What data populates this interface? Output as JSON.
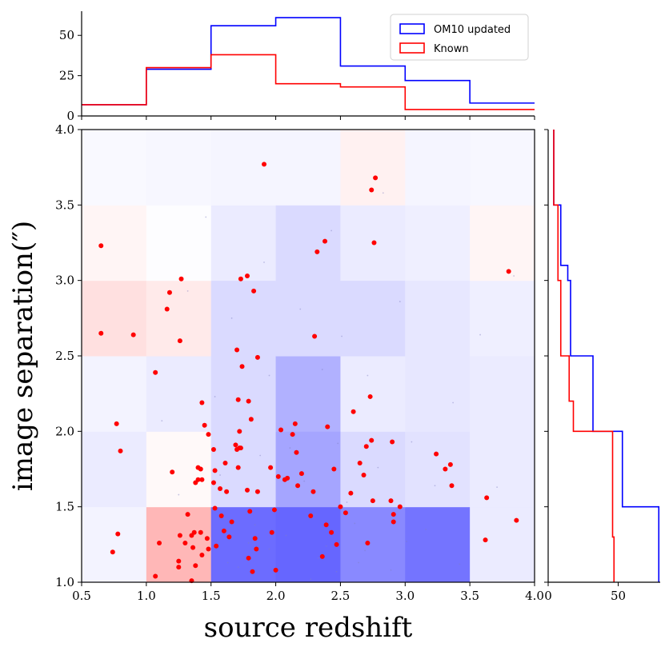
{
  "chart_data": [
    {
      "id": "joint",
      "type": "heatmap",
      "xlabel": "source redshift",
      "ylabel": "image separation(″)",
      "xlim": [
        0.5,
        4.0
      ],
      "ylim": [
        1.0,
        4.0
      ],
      "x_edges": [
        0.5,
        1.0,
        1.5,
        2.0,
        2.5,
        3.0,
        3.5,
        4.0
      ],
      "y_edges": [
        1.0,
        1.5,
        2.0,
        2.5,
        3.0,
        3.5,
        4.0
      ],
      "x_ticks": [
        0.5,
        1.0,
        1.5,
        2.0,
        2.5,
        3.0,
        3.5,
        4.0
      ],
      "x_tick_labels": [
        "0.5",
        "1.0",
        "1.5",
        "2.0",
        "2.5",
        "3.0",
        "3.5",
        "4.0"
      ],
      "y_ticks": [
        1.0,
        1.5,
        2.0,
        2.5,
        3.0,
        3.5,
        4.0
      ],
      "y_tick_labels": [
        "1.0",
        "1.5",
        "2.0",
        "2.5",
        "3.0",
        "3.5",
        "4.0"
      ],
      "difference_colors": {
        "positive": "#3333ff",
        "negative": "#ff3030",
        "neutral": "#ffffff"
      },
      "difference_grid": [
        [
          0.06,
          -0.35,
          0.72,
          0.75,
          0.58,
          0.68,
          0.1
        ],
        [
          0.1,
          -0.03,
          0.18,
          0.44,
          0.18,
          0.14,
          0.1
        ],
        [
          0.06,
          0.1,
          0.18,
          0.38,
          0.1,
          0.12,
          0.1
        ],
        [
          -0.15,
          -0.1,
          0.18,
          0.18,
          0.18,
          0.12,
          0.08
        ],
        [
          -0.05,
          0.01,
          0.1,
          0.18,
          0.1,
          0.08,
          -0.05
        ],
        [
          0.03,
          0.04,
          0.05,
          0.05,
          -0.07,
          0.05,
          0.04
        ]
      ],
      "known_color": "#ff0000",
      "known_points": [
        [
          0.65,
          3.23
        ],
        [
          0.65,
          2.65
        ],
        [
          0.9,
          2.64
        ],
        [
          0.77,
          2.05
        ],
        [
          0.8,
          1.87
        ],
        [
          0.78,
          1.32
        ],
        [
          0.74,
          1.2
        ],
        [
          1.07,
          2.39
        ],
        [
          1.18,
          2.92
        ],
        [
          1.16,
          2.81
        ],
        [
          1.27,
          3.01
        ],
        [
          1.26,
          2.6
        ],
        [
          1.2,
          1.73
        ],
        [
          1.1,
          1.26
        ],
        [
          1.07,
          1.04
        ],
        [
          1.26,
          1.31
        ],
        [
          1.25,
          1.14
        ],
        [
          1.3,
          1.26
        ],
        [
          1.32,
          1.45
        ],
        [
          1.25,
          1.1
        ],
        [
          1.35,
          1.31
        ],
        [
          1.37,
          1.33
        ],
        [
          1.36,
          1.23
        ],
        [
          1.38,
          1.11
        ],
        [
          1.35,
          1.01
        ],
        [
          1.42,
          1.33
        ],
        [
          1.43,
          1.18
        ],
        [
          1.4,
          1.68
        ],
        [
          1.38,
          1.66
        ],
        [
          1.43,
          1.68
        ],
        [
          1.4,
          1.76
        ],
        [
          1.42,
          1.75
        ],
        [
          1.45,
          2.04
        ],
        [
          1.43,
          2.19
        ],
        [
          1.47,
          1.29
        ],
        [
          1.48,
          1.22
        ],
        [
          1.48,
          1.98
        ],
        [
          1.52,
          1.88
        ],
        [
          1.52,
          1.66
        ],
        [
          1.53,
          1.74
        ],
        [
          1.53,
          1.49
        ],
        [
          1.54,
          1.24
        ],
        [
          1.57,
          1.62
        ],
        [
          1.58,
          1.44
        ],
        [
          1.6,
          1.34
        ],
        [
          1.61,
          1.79
        ],
        [
          1.62,
          1.6
        ],
        [
          1.64,
          1.3
        ],
        [
          1.66,
          1.4
        ],
        [
          1.69,
          1.91
        ],
        [
          1.7,
          1.88
        ],
        [
          1.71,
          1.76
        ],
        [
          1.71,
          2.21
        ],
        [
          1.7,
          2.54
        ],
        [
          1.72,
          2.0
        ],
        [
          1.72,
          1.89
        ],
        [
          1.73,
          1.89
        ],
        [
          1.74,
          2.43
        ],
        [
          1.73,
          3.01
        ],
        [
          1.78,
          3.03
        ],
        [
          1.79,
          2.2
        ],
        [
          1.81,
          2.08
        ],
        [
          1.78,
          1.61
        ],
        [
          1.8,
          1.47
        ],
        [
          1.79,
          1.16
        ],
        [
          1.82,
          1.07
        ],
        [
          1.84,
          1.29
        ],
        [
          1.85,
          1.22
        ],
        [
          1.83,
          2.93
        ],
        [
          1.86,
          2.49
        ],
        [
          1.86,
          1.6
        ],
        [
          1.91,
          3.77
        ],
        [
          1.97,
          1.33
        ],
        [
          1.96,
          1.76
        ],
        [
          1.99,
          1.48
        ],
        [
          2.0,
          1.08
        ],
        [
          2.02,
          1.7
        ],
        [
          2.04,
          2.01
        ],
        [
          2.07,
          1.68
        ],
        [
          2.09,
          1.69
        ],
        [
          2.13,
          1.98
        ],
        [
          2.15,
          2.05
        ],
        [
          2.16,
          1.86
        ],
        [
          2.17,
          1.64
        ],
        [
          2.2,
          1.72
        ],
        [
          2.27,
          1.44
        ],
        [
          2.29,
          1.6
        ],
        [
          2.3,
          2.63
        ],
        [
          2.32,
          3.19
        ],
        [
          2.36,
          1.17
        ],
        [
          2.38,
          3.26
        ],
        [
          2.39,
          1.38
        ],
        [
          2.4,
          2.03
        ],
        [
          2.43,
          1.33
        ],
        [
          2.45,
          1.75
        ],
        [
          2.47,
          1.25
        ],
        [
          2.5,
          1.5
        ],
        [
          2.54,
          1.46
        ],
        [
          2.58,
          1.59
        ],
        [
          2.6,
          2.13
        ],
        [
          2.65,
          1.79
        ],
        [
          2.68,
          1.71
        ],
        [
          2.7,
          1.9
        ],
        [
          2.71,
          1.26
        ],
        [
          2.73,
          2.23
        ],
        [
          2.74,
          1.94
        ],
        [
          2.75,
          1.54
        ],
        [
          2.74,
          3.6
        ],
        [
          2.76,
          3.25
        ],
        [
          2.77,
          3.68
        ],
        [
          2.89,
          1.54
        ],
        [
          2.9,
          1.93
        ],
        [
          2.91,
          1.4
        ],
        [
          2.91,
          1.45
        ],
        [
          2.96,
          1.5
        ],
        [
          3.24,
          1.85
        ],
        [
          3.31,
          1.75
        ],
        [
          3.35,
          1.78
        ],
        [
          3.36,
          1.64
        ],
        [
          3.62,
          1.28
        ],
        [
          3.63,
          1.56
        ],
        [
          3.8,
          3.06
        ],
        [
          3.86,
          1.41
        ]
      ],
      "sim_points": [
        [
          1.71,
          1.1
        ],
        [
          2.33,
          1.16
        ],
        [
          1.95,
          1.22
        ],
        [
          2.08,
          1.31
        ],
        [
          2.47,
          1.07
        ],
        [
          1.61,
          1.42
        ],
        [
          2.69,
          1.21
        ],
        [
          3.16,
          1.35
        ],
        [
          2.22,
          1.67
        ],
        [
          2.61,
          1.39
        ],
        [
          1.88,
          1.84
        ],
        [
          3.42,
          1.12
        ],
        [
          2.15,
          2.05
        ],
        [
          1.53,
          2.23
        ],
        [
          2.79,
          1.76
        ],
        [
          2.36,
          2.41
        ],
        [
          3.05,
          1.93
        ],
        [
          1.66,
          2.75
        ],
        [
          2.51,
          2.63
        ],
        [
          1.25,
          1.58
        ],
        [
          2.96,
          2.86
        ],
        [
          1.91,
          3.12
        ],
        [
          3.37,
          2.19
        ],
        [
          2.43,
          3.33
        ],
        [
          1.12,
          2.07
        ],
        [
          3.71,
          1.63
        ],
        [
          2.27,
          1.02
        ],
        [
          1.79,
          1.26
        ],
        [
          2.55,
          1.53
        ],
        [
          2.02,
          1.47
        ],
        [
          2.89,
          1.08
        ],
        [
          3.23,
          1.64
        ],
        [
          1.57,
          1.71
        ],
        [
          2.71,
          2.37
        ],
        [
          2.19,
          2.81
        ],
        [
          1.95,
          2.37
        ],
        [
          3.58,
          2.64
        ],
        [
          1.32,
          2.93
        ],
        [
          2.48,
          1.92
        ],
        [
          3.84,
          3.03
        ],
        [
          1.46,
          3.42
        ],
        [
          2.83,
          3.58
        ],
        [
          1.84,
          1.38
        ],
        [
          2.11,
          1.89
        ],
        [
          2.39,
          1.24
        ],
        [
          1.63,
          1.13
        ],
        [
          3.01,
          1.27
        ],
        [
          2.64,
          1.13
        ],
        [
          1.99,
          1.05
        ],
        [
          2.31,
          1.45
        ]
      ]
    },
    {
      "id": "top",
      "type": "histogram",
      "xlim": [
        0.5,
        4.0
      ],
      "ylim": [
        0,
        65
      ],
      "y_ticks": [
        0,
        25,
        50
      ],
      "y_tick_labels": [
        "0",
        "25",
        "50"
      ],
      "bin_edges": [
        0.5,
        1.0,
        1.5,
        2.0,
        2.5,
        3.0,
        3.5,
        4.0
      ],
      "series": [
        {
          "name": "OM10 updated",
          "color": "#0000ff",
          "values": [
            7,
            29,
            56,
            61,
            31,
            22,
            8
          ]
        },
        {
          "name": "Known",
          "color": "#ff0000",
          "values": [
            7,
            30,
            38,
            20,
            18,
            4,
            4
          ]
        }
      ],
      "legend": {
        "position": "top-right"
      }
    },
    {
      "id": "right",
      "type": "histogram",
      "orientation": "horizontal",
      "xlim": [
        0,
        80
      ],
      "ylim": [
        1.0,
        4.0
      ],
      "x_ticks": [
        0,
        50
      ],
      "x_tick_labels": [
        "0",
        "50"
      ],
      "bin_edges": [
        1.0,
        1.1,
        1.2,
        1.3,
        1.4,
        1.5,
        1.6,
        1.7,
        1.8,
        1.9,
        2.0,
        2.1,
        2.2,
        2.3,
        2.4,
        2.5,
        2.6,
        2.7,
        2.8,
        2.9,
        3.0,
        3.1,
        3.2,
        3.3,
        3.4,
        3.5,
        3.6,
        3.7,
        3.8,
        3.9,
        4.0
      ],
      "series": [
        {
          "name": "OM10 updated",
          "color": "#0000ff",
          "values": [
            79,
            79,
            79,
            79,
            79,
            53,
            53,
            53,
            53,
            53,
            32,
            32,
            32,
            32,
            32,
            16,
            16,
            16,
            16,
            16,
            14,
            9,
            9,
            9,
            9,
            4,
            4,
            4,
            4,
            4
          ]
        },
        {
          "name": "Known",
          "color": "#ff0000",
          "values": [
            47,
            47,
            47,
            46,
            46,
            46,
            46,
            46,
            46,
            46,
            18,
            18,
            15,
            15,
            15,
            9,
            9,
            9,
            9,
            9,
            7,
            7,
            7,
            7,
            7,
            4,
            4,
            4,
            4,
            4
          ]
        }
      ]
    }
  ]
}
